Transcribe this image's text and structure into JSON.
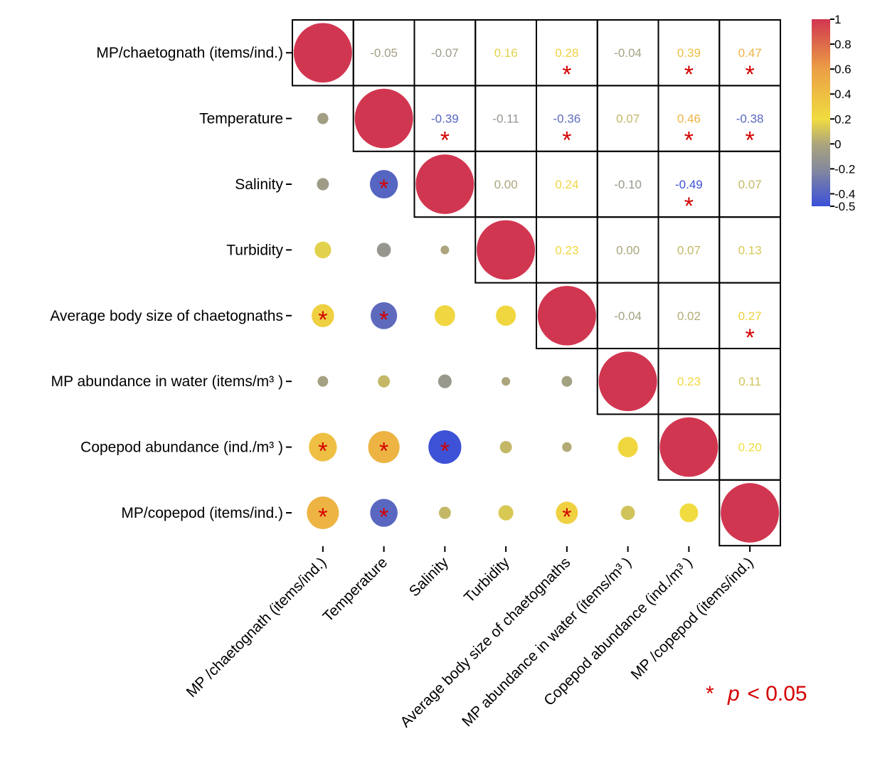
{
  "chart_data": {
    "type": "heatmap",
    "title": "",
    "variables": [
      "MP/chaetognath (items/ind.)",
      "Temperature",
      "Salinity",
      "Turbidity",
      "Average body size of chaetognaths",
      "MP abundance in water (items/m³ )",
      "Copepod abundance (ind./m³ )",
      "MP/copepod (items/ind.)"
    ],
    "x_labels": [
      "MP /chaetognath (items/ind.)",
      "Temperature",
      "Salinity",
      "Turbidity",
      "Average body size of chaetognaths",
      "MP abundance in water (items/m³ )",
      "Copepod abundance (ind./m³ )",
      "MP /copepod (items/ind.)"
    ],
    "matrix": [
      [
        1,
        -0.05,
        -0.07,
        0.16,
        0.28,
        -0.04,
        0.39,
        0.47
      ],
      [
        -0.05,
        1,
        -0.39,
        -0.11,
        -0.36,
        0.07,
        0.46,
        -0.38
      ],
      [
        -0.07,
        -0.39,
        1,
        0.0,
        0.24,
        -0.1,
        -0.49,
        0.07
      ],
      [
        0.16,
        -0.11,
        0.0,
        1,
        0.23,
        0.0,
        0.07,
        0.13
      ],
      [
        0.28,
        -0.36,
        0.24,
        0.23,
        1,
        -0.04,
        0.02,
        0.27
      ],
      [
        -0.04,
        0.07,
        -0.1,
        0.0,
        -0.04,
        1,
        0.23,
        0.11
      ],
      [
        0.39,
        0.46,
        -0.49,
        0.07,
        0.02,
        0.23,
        1,
        0.2
      ],
      [
        0.47,
        -0.38,
        0.07,
        0.13,
        0.27,
        0.11,
        0.2,
        1
      ]
    ],
    "significant": [
      [
        0,
        4
      ],
      [
        0,
        6
      ],
      [
        0,
        7
      ],
      [
        1,
        2
      ],
      [
        1,
        4
      ],
      [
        1,
        6
      ],
      [
        1,
        7
      ],
      [
        2,
        6
      ],
      [
        4,
        7
      ]
    ],
    "colorbar": {
      "range": [
        -0.5,
        1
      ],
      "ticks": [
        "1",
        "0.8",
        "0.6",
        "0.4",
        "0.2",
        "0",
        "-0.2",
        "-0.4",
        "-0.5"
      ],
      "tick_values": [
        1,
        0.8,
        0.6,
        0.4,
        0.2,
        0,
        -0.2,
        -0.4,
        -0.5
      ],
      "stops": [
        {
          "v": -0.5,
          "color": "#3b50d8"
        },
        {
          "v": -0.2,
          "color": "#858a9c"
        },
        {
          "v": 0,
          "color": "#aca57c"
        },
        {
          "v": 0.2,
          "color": "#f0dc40"
        },
        {
          "v": 0.6,
          "color": "#eb9f45"
        },
        {
          "v": 1,
          "color": "#d13650"
        }
      ]
    },
    "significance_marker": "*",
    "legend": {
      "star": "*",
      "p": "p",
      "text": " < 0.05"
    },
    "star_color": "#d40000"
  }
}
